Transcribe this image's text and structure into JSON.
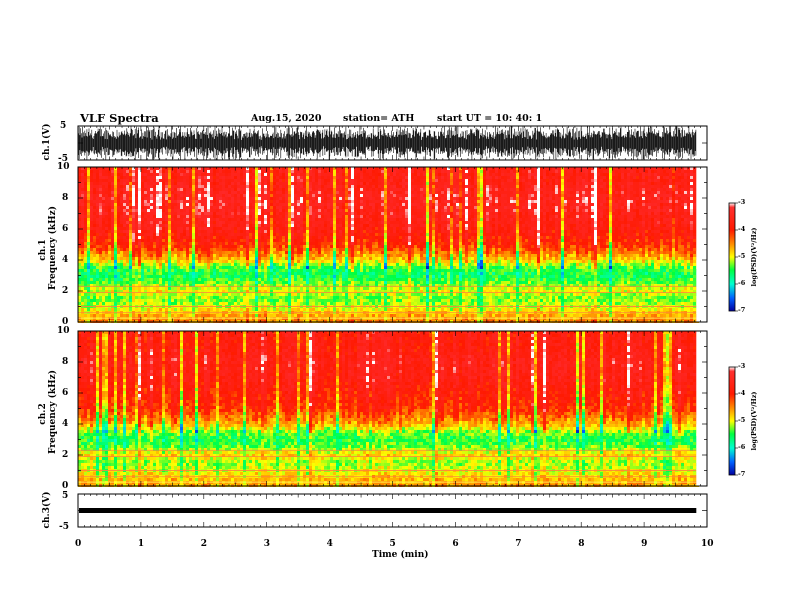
{
  "header": {
    "title": "VLF Spectra",
    "date": "Aug.15, 2020",
    "station": "station= ATH",
    "start": "start  UT  =   10: 40: 1"
  },
  "colors": {
    "high": "#ff1a00",
    "mid": "#ffff00",
    "low": "#00ff80",
    "lowest": "#0000a0",
    "trace": "#000000"
  },
  "chart_data": [
    {
      "type": "line",
      "panel": "ch1-waveform",
      "ylabel": "ch.1(V)",
      "ylim": [
        -5,
        5
      ],
      "yticks": [
        "5",
        "-5"
      ],
      "xlim": [
        0,
        10
      ],
      "description_series": {
        "name": "",
        "amplitude_range": [
          -5,
          5
        ]
      }
    },
    {
      "type": "heatmap",
      "panel": "ch1-spectrogram",
      "ylabel": "ch.1",
      "ylabel2": "Frequency (kHz)",
      "ylim": [
        0,
        10
      ],
      "yticks": [
        "0",
        "2",
        "4",
        "6",
        "8",
        "10"
      ],
      "xlim": [
        0,
        10
      ],
      "z_unit": "log(PSD)(V²/Hz)",
      "zlim": [
        -7,
        -3
      ],
      "zticks": [
        "-3",
        "-4",
        "-5",
        "-6",
        "-7"
      ],
      "profile_khz": [
        0.25,
        1,
        1.5,
        2,
        2.5,
        3,
        3.5,
        4,
        4.5,
        5,
        6,
        7,
        8,
        9,
        10
      ],
      "profile_logpsd": [
        -4.5,
        -5.1,
        -5.3,
        -5.0,
        -5.3,
        -5.6,
        -5.4,
        -4.8,
        -4.4,
        -4.0,
        -3.7,
        -3.5,
        -3.4,
        -3.6,
        -3.6
      ]
    },
    {
      "type": "heatmap",
      "panel": "ch2-spectrogram",
      "ylabel": "ch.2",
      "ylabel2": "Frequency (kHz)",
      "ylim": [
        0,
        10
      ],
      "yticks": [
        "0",
        "2",
        "4",
        "6",
        "8",
        "10"
      ],
      "xlim": [
        0,
        10
      ],
      "z_unit": "log(PSD)(V²/Hz)",
      "zlim": [
        -7,
        -3
      ],
      "zticks": [
        "-3",
        "-4",
        "-5",
        "-6",
        "-7"
      ],
      "profile_khz": [
        0.25,
        1,
        1.5,
        2,
        2.5,
        3,
        3.5,
        4,
        4.5,
        5,
        6,
        7,
        8,
        9,
        10
      ],
      "profile_logpsd": [
        -4.6,
        -5.0,
        -5.2,
        -4.8,
        -5.3,
        -5.5,
        -5.2,
        -4.6,
        -4.3,
        -4.0,
        -3.8,
        -3.6,
        -3.5,
        -3.7,
        -3.7
      ]
    },
    {
      "type": "line",
      "panel": "ch3-waveform",
      "ylabel": "ch.3(V)",
      "ylim": [
        -5,
        5
      ],
      "yticks": [
        "5",
        "-5"
      ],
      "xlim": [
        0,
        10
      ],
      "xlabel": "Time  (min)",
      "xticks": [
        "0",
        "1",
        "2",
        "3",
        "4",
        "5",
        "6",
        "7",
        "8",
        "9",
        "10"
      ],
      "level": 0
    }
  ]
}
